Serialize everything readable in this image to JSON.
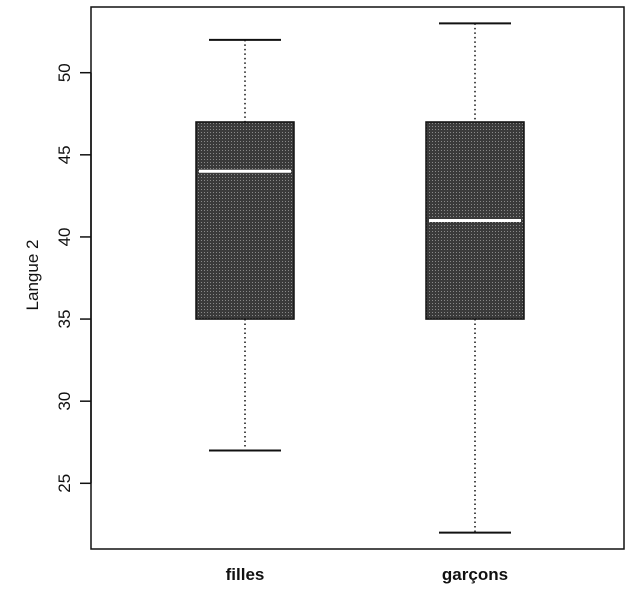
{
  "chart_data": {
    "type": "boxplot",
    "ylabel": "Langue 2",
    "xlabel": "",
    "ylim": [
      21,
      54
    ],
    "yticks": [
      25,
      30,
      35,
      40,
      45,
      50
    ],
    "grid": false,
    "categories": [
      "filles",
      "garçons"
    ],
    "boxes": [
      {
        "category": "filles",
        "min": 27,
        "q1": 35,
        "median": 44,
        "q3": 47,
        "max": 52
      },
      {
        "category": "garçons",
        "min": 22,
        "q1": 35,
        "median": 41,
        "q3": 47,
        "max": 53
      }
    ],
    "box_color": "#3a3a3a",
    "median_color": "#ffffff"
  }
}
